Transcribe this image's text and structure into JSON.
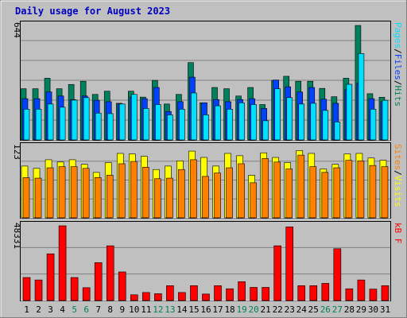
{
  "title": "Daily usage for August 2023",
  "colors": {
    "background": "#c0c0c0",
    "title": "#0000c0",
    "grid": "#808080",
    "hits": "#00805c",
    "files": "#0040ff",
    "pages": "#00e0ff",
    "sites": "#ff8000",
    "visits": "#ffff00",
    "kbytes": "#ff0000",
    "weekend": "#00805c",
    "weekday": "#000000"
  },
  "chart_data": [
    {
      "type": "bar",
      "panel": "top",
      "ymax_label": "644",
      "ymax": 644,
      "legend": [
        {
          "key": "pages",
          "label": "Pages"
        },
        {
          "key": "sep",
          "label": "/"
        },
        {
          "key": "files",
          "label": "Files"
        },
        {
          "key": "sep",
          "label": "/"
        },
        {
          "key": "hits",
          "label": "Hits"
        }
      ],
      "categories": [
        1,
        2,
        3,
        4,
        5,
        6,
        7,
        8,
        9,
        10,
        11,
        12,
        13,
        14,
        15,
        16,
        17,
        18,
        19,
        20,
        21,
        22,
        23,
        24,
        25,
        26,
        27,
        28,
        29,
        30,
        31
      ],
      "series": [
        {
          "key": "hits",
          "values": [
            288,
            288,
            347,
            288,
            312,
            330,
            256,
            274,
            206,
            274,
            241,
            335,
            202,
            256,
            435,
            209,
            295,
            288,
            247,
            295,
            199,
            335,
            358,
            330,
            330,
            290,
            243,
            347,
            644,
            260,
            240
          ]
        },
        {
          "key": "files",
          "values": [
            232,
            232,
            270,
            247,
            227,
            247,
            223,
            215,
            202,
            241,
            232,
            295,
            160,
            215,
            353,
            209,
            227,
            215,
            227,
            232,
            177,
            337,
            299,
            270,
            295,
            229,
            206,
            283,
            319,
            232,
            216
          ]
        },
        {
          "key": "pages",
          "values": [
            173,
            173,
            202,
            184,
            224,
            238,
            151,
            148,
            202,
            256,
            177,
            199,
            141,
            173,
            264,
            141,
            192,
            173,
            209,
            199,
            108,
            288,
            238,
            202,
            206,
            166,
            101,
            313,
            486,
            173,
            223
          ]
        }
      ]
    },
    {
      "type": "bar",
      "panel": "middle",
      "ymax_label": "123",
      "ymax": 123,
      "legend": [
        {
          "key": "sites",
          "label": "Sites"
        },
        {
          "key": "sep",
          "label": "/"
        },
        {
          "key": "visits",
          "label": "Visits"
        }
      ],
      "categories": [
        1,
        2,
        3,
        4,
        5,
        6,
        7,
        8,
        9,
        10,
        11,
        12,
        13,
        14,
        15,
        16,
        17,
        18,
        19,
        20,
        21,
        22,
        23,
        24,
        25,
        26,
        27,
        28,
        29,
        30,
        31
      ],
      "series": [
        {
          "key": "visits",
          "values": [
            90,
            86,
            101,
            97,
            101,
            93,
            79,
            96,
            112,
            111,
            107,
            84,
            90,
            99,
            116,
            105,
            90,
            112,
            108,
            74,
            113,
            105,
            96,
            117,
            112,
            85,
            93,
            111,
            112,
            104,
            100
          ]
        },
        {
          "key": "sites",
          "values": [
            70,
            69,
            87,
            89,
            89,
            86,
            70,
            74,
            94,
            98,
            88,
            68,
            69,
            84,
            101,
            72,
            78,
            87,
            94,
            61,
            103,
            97,
            85,
            109,
            89,
            79,
            87,
            100,
            99,
            91,
            89
          ]
        }
      ]
    },
    {
      "type": "bar",
      "panel": "bottom",
      "ymax_label": "48331",
      "ymax": 48331,
      "legend": [
        {
          "key": "kbytes",
          "label": "kB F"
        }
      ],
      "categories": [
        1,
        2,
        3,
        4,
        5,
        6,
        7,
        8,
        9,
        10,
        11,
        12,
        13,
        14,
        15,
        16,
        17,
        18,
        19,
        20,
        21,
        22,
        23,
        24,
        25,
        26,
        27,
        28,
        29,
        30,
        31
      ],
      "series": [
        {
          "key": "kbytes",
          "values": [
            14900,
            13300,
            30200,
            49000,
            14900,
            8300,
            24500,
            35400,
            18500,
            3700,
            5200,
            4400,
            9600,
            5200,
            9600,
            4200,
            9600,
            7600,
            12200,
            8500,
            8500,
            35400,
            47600,
            9600,
            9600,
            11100,
            33500,
            7600,
            13300,
            7400,
            9600
          ]
        }
      ]
    }
  ],
  "weekend_days": [
    5,
    6,
    12,
    13,
    19,
    20,
    26,
    27
  ]
}
